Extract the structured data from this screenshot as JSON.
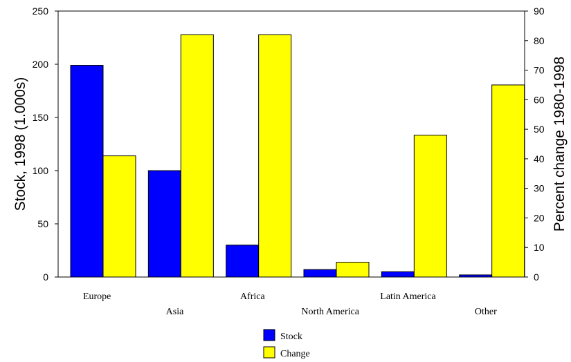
{
  "chart_data": {
    "type": "bar",
    "categories": [
      "Europe",
      "Asia",
      "Africa",
      "North America",
      "Latin America",
      "Other"
    ],
    "series": [
      {
        "name": "Stock",
        "axis": "left",
        "color": "#0000ff",
        "values": [
          199,
          100,
          30,
          7,
          5,
          2
        ]
      },
      {
        "name": "Change",
        "axis": "right",
        "color": "#ffff00",
        "values": [
          41,
          82,
          82,
          5,
          48,
          65
        ]
      }
    ],
    "ylabel": "Stock, 1998 (1.000s)",
    "y2label": "Percent change 1980-1998",
    "ylim": [
      0,
      250
    ],
    "y2lim": [
      0,
      90
    ],
    "yticks": [
      0,
      50,
      100,
      150,
      200,
      250
    ],
    "y2ticks": [
      0,
      10,
      20,
      30,
      40,
      50,
      60,
      70,
      80,
      90
    ],
    "grid": false,
    "legend_position": "bottom-center"
  }
}
